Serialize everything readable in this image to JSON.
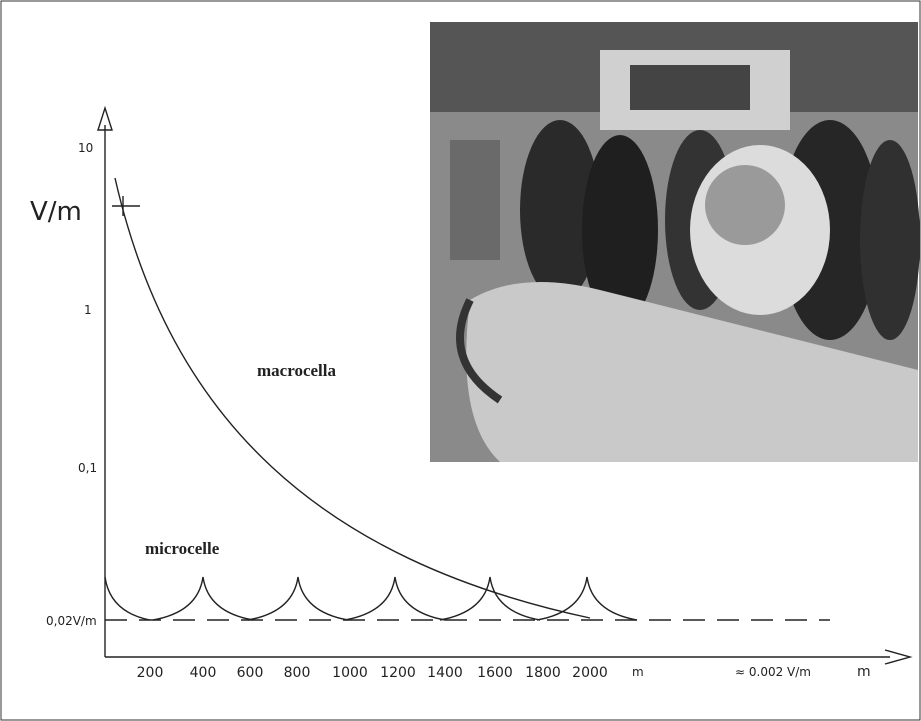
{
  "y_axis": {
    "label": "V/m",
    "ticks": [
      "10",
      "1",
      "0,1",
      "0,02V/m"
    ]
  },
  "x_axis": {
    "ticks": [
      "200",
      "400",
      "600",
      "800",
      "1000",
      "1200",
      "1400",
      "1600",
      "1800",
      "2000"
    ],
    "unit": "m",
    "note": "≈ 0.002 V/m",
    "end_label": "m"
  },
  "labels": {
    "macro": "macrocella",
    "micro": "microcelle"
  }
}
